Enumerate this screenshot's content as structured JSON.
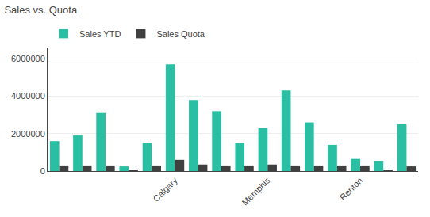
{
  "chart_data": {
    "type": "bar",
    "title": "Sales vs. Quota",
    "categories": [
      null,
      null,
      null,
      null,
      null,
      "Calgary",
      null,
      null,
      null,
      "Memphis",
      null,
      null,
      null,
      "Renton",
      null,
      null
    ],
    "series": [
      {
        "name": "Sales YTD",
        "color": "#2abfa3",
        "values": [
          1600000,
          1900000,
          3100000,
          250000,
          1500000,
          5700000,
          3800000,
          3200000,
          1500000,
          2300000,
          4300000,
          2600000,
          1400000,
          650000,
          550000,
          2500000
        ]
      },
      {
        "name": "Sales Quota",
        "color": "#404040",
        "values": [
          300000,
          300000,
          300000,
          10000,
          300000,
          600000,
          350000,
          300000,
          300000,
          350000,
          300000,
          300000,
          300000,
          300000,
          10000,
          250000
        ]
      }
    ],
    "ylim": [
      0,
      6600000
    ],
    "yticks": [
      0,
      2000000,
      4000000,
      6000000
    ],
    "grid": true,
    "legend": "upper left"
  }
}
